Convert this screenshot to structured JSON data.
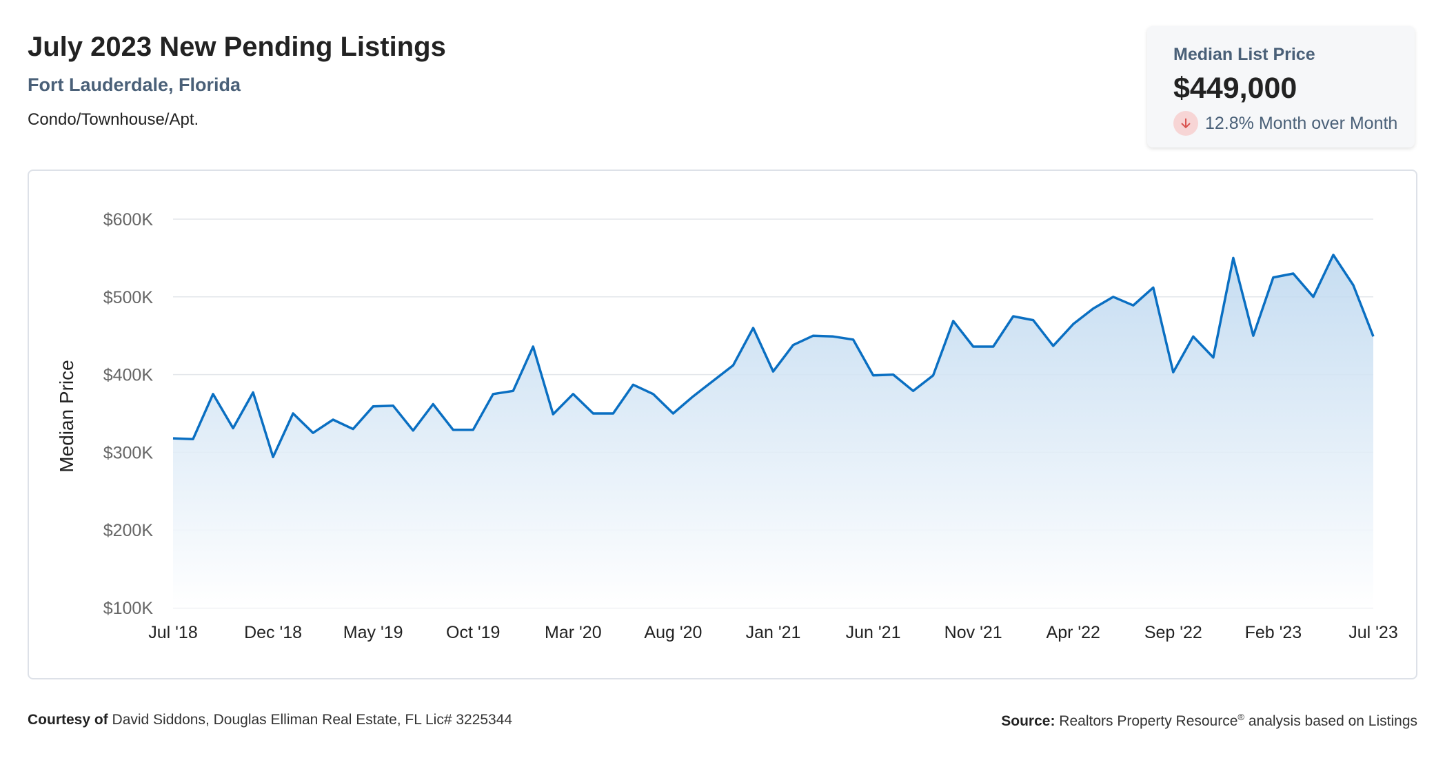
{
  "header": {
    "title": "July 2023 New Pending Listings",
    "location": "Fort Lauderdale, Florida",
    "property_type": "Condo/Townhouse/Apt."
  },
  "stat_card": {
    "label": "Median List Price",
    "value": "$449,000",
    "change_text": "12.8% Month over Month",
    "change_icon": "arrow-down-icon",
    "change_color": "#d9534f"
  },
  "footer": {
    "courtesy_label": "Courtesy of",
    "courtesy_text": "David Siddons, Douglas Elliman Real Estate, FL Lic# 3225344",
    "source_label": "Source:",
    "source_text": "Realtors Property Resource",
    "source_mark": "®",
    "source_suffix": "analysis based on Listings"
  },
  "chart_data": {
    "type": "area",
    "ylabel": "Median Price",
    "xlabel": "",
    "ylim": [
      100000,
      600000
    ],
    "y_ticks": [
      {
        "value": 600000,
        "label": "$600K"
      },
      {
        "value": 500000,
        "label": "$500K"
      },
      {
        "value": 400000,
        "label": "$400K"
      },
      {
        "value": 300000,
        "label": "$300K"
      },
      {
        "value": 200000,
        "label": "$200K"
      },
      {
        "value": 100000,
        "label": "$100K"
      }
    ],
    "x_ticks": [
      "Jul '18",
      "Dec '18",
      "May '19",
      "Oct '19",
      "Mar '20",
      "Aug '20",
      "Jan '21",
      "Jun '21",
      "Nov '21",
      "Apr '22",
      "Sep '22",
      "Feb '23",
      "Jul '23"
    ],
    "x": [
      "Jul '18",
      "Aug '18",
      "Sep '18",
      "Oct '18",
      "Nov '18",
      "Dec '18",
      "Jan '19",
      "Feb '19",
      "Mar '19",
      "Apr '19",
      "May '19",
      "Jun '19",
      "Jul '19",
      "Aug '19",
      "Sep '19",
      "Oct '19",
      "Nov '19",
      "Dec '19",
      "Jan '20",
      "Feb '20",
      "Mar '20",
      "Apr '20",
      "May '20",
      "Jun '20",
      "Jul '20",
      "Aug '20",
      "Sep '20",
      "Oct '20",
      "Nov '20",
      "Dec '20",
      "Jan '21",
      "Feb '21",
      "Mar '21",
      "Apr '21",
      "May '21",
      "Jun '21",
      "Jul '21",
      "Aug '21",
      "Sep '21",
      "Oct '21",
      "Nov '21",
      "Dec '21",
      "Jan '22",
      "Feb '22",
      "Mar '22",
      "Apr '22",
      "May '22",
      "Jun '22",
      "Jul '22",
      "Aug '22",
      "Sep '22",
      "Oct '22",
      "Nov '22",
      "Dec '22",
      "Jan '23",
      "Feb '23",
      "Mar '23",
      "Apr '23",
      "May '23",
      "Jun '23",
      "Jul '23"
    ],
    "series": [
      {
        "values": [
          318000,
          317000,
          375000,
          331000,
          377000,
          294000,
          350000,
          325000,
          342000,
          330000,
          359000,
          360000,
          328000,
          362000,
          329000,
          329000,
          375000,
          379000,
          436000,
          349000,
          375000,
          350000,
          350000,
          387000,
          375000,
          350000,
          372000,
          392000,
          412000,
          460000,
          404000,
          438000,
          450000,
          449000,
          445000,
          399000,
          400000,
          379000,
          399000,
          469000,
          436000,
          436000,
          475000,
          470000,
          437000,
          465000,
          485000,
          500000,
          489000,
          512000,
          403000,
          449000,
          422000,
          550000,
          450000,
          525000,
          530000,
          500000,
          554000,
          515000,
          449000
        ]
      }
    ],
    "line_color": "#0a6fc2",
    "fill_color": "#cfe2f3",
    "grid": true,
    "legend": "none"
  }
}
